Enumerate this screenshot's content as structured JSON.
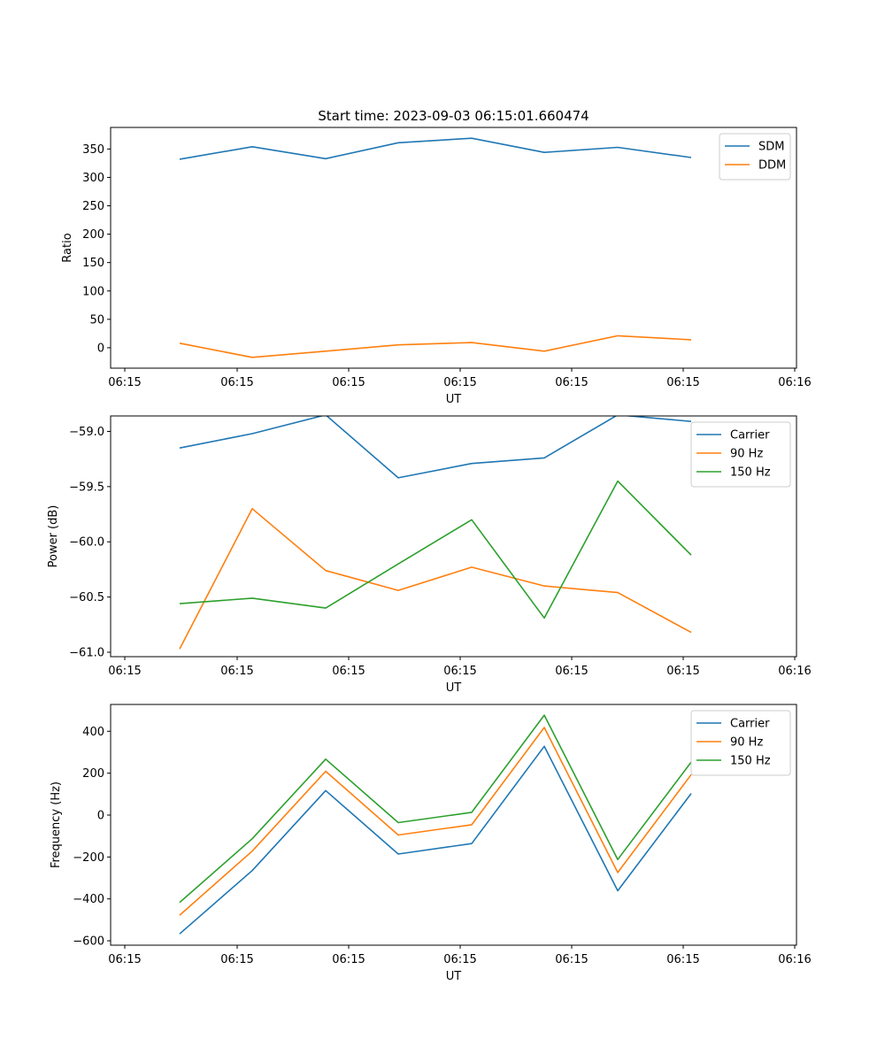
{
  "figure": {
    "title": "Start time: 2023-09-03 06:15:01.660474"
  },
  "chart_data": [
    {
      "type": "line",
      "xlabel": "UT",
      "ylabel": "Ratio",
      "x_tick_labels": [
        "06:15",
        "06:15",
        "06:15",
        "06:15",
        "06:15",
        "06:15",
        "06:16"
      ],
      "y_ticks": [
        0,
        50,
        100,
        150,
        200,
        250,
        300,
        350
      ],
      "ylim": [
        -36,
        388
      ],
      "legend": "top-right",
      "series": [
        {
          "name": "SDM",
          "color": "#1f77b4",
          "values": [
            332,
            354,
            333,
            361,
            369,
            344,
            353,
            335
          ]
        },
        {
          "name": "DDM",
          "color": "#ff7f0e",
          "values": [
            8,
            -17,
            -6,
            5,
            9,
            -6,
            21,
            14
          ]
        }
      ]
    },
    {
      "type": "line",
      "xlabel": "UT",
      "ylabel": "Power (dB)",
      "x_tick_labels": [
        "06:15",
        "06:15",
        "06:15",
        "06:15",
        "06:15",
        "06:15",
        "06:16"
      ],
      "y_ticks": [
        -61.0,
        -60.5,
        -60.0,
        -59.5,
        -59.0
      ],
      "y_tick_labels": [
        "−61.0",
        "−60.5",
        "−60.0",
        "−59.5",
        "−59.0"
      ],
      "ylim": [
        -61.04,
        -58.86
      ],
      "legend": "top-right",
      "series": [
        {
          "name": "Carrier",
          "color": "#1f77b4",
          "values": [
            -59.15,
            -59.02,
            -58.85,
            -59.42,
            -59.29,
            -59.24,
            -58.85,
            -58.91
          ]
        },
        {
          "name": "90 Hz",
          "color": "#ff7f0e",
          "values": [
            -60.97,
            -59.7,
            -60.26,
            -60.44,
            -60.23,
            -60.4,
            -60.46,
            -60.82
          ]
        },
        {
          "name": "150 Hz",
          "color": "#2ca02c",
          "values": [
            -60.56,
            -60.51,
            -60.6,
            -60.2,
            -59.8,
            -60.69,
            -59.45,
            -60.12
          ]
        }
      ]
    },
    {
      "type": "line",
      "xlabel": "UT",
      "ylabel": "Frequency (Hz)",
      "x_tick_labels": [
        "06:15",
        "06:15",
        "06:15",
        "06:15",
        "06:15",
        "06:15",
        "06:16"
      ],
      "y_ticks": [
        -600,
        -400,
        -200,
        0,
        200,
        400
      ],
      "y_tick_labels": [
        "−600",
        "−400",
        "−200",
        "0",
        "200",
        "400"
      ],
      "ylim": [
        -621,
        528
      ],
      "legend": "top-right",
      "series": [
        {
          "name": "Carrier",
          "color": "#1f77b4",
          "values": [
            -567,
            -265,
            117,
            -186,
            -136,
            328,
            -361,
            103
          ]
        },
        {
          "name": "90 Hz",
          "color": "#ff7f0e",
          "values": [
            -478,
            -172,
            209,
            -95,
            -46,
            418,
            -274,
            193
          ]
        },
        {
          "name": "150 Hz",
          "color": "#2ca02c",
          "values": [
            -417,
            -113,
            267,
            -36,
            13,
            477,
            -212,
            253
          ]
        }
      ]
    }
  ]
}
